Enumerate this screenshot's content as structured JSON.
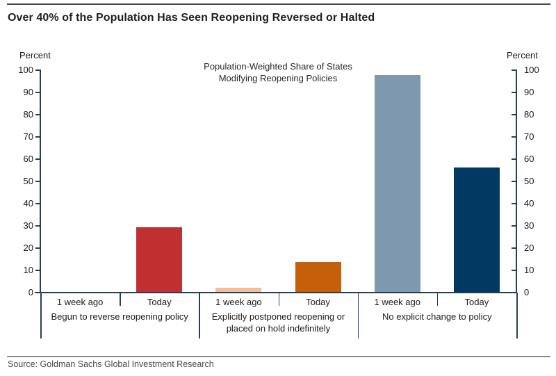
{
  "header": {
    "title": "Over 40% of the Population Has Seen Reopening Reversed or Halted"
  },
  "footer": {
    "source": "Source: Goldman Sachs Global Investment Research"
  },
  "chart_data": {
    "type": "bar",
    "title_lines": [
      "Population-Weighted Share of States",
      "Modifying Reopening Policies"
    ],
    "y_axis_left_label": "Percent",
    "y_axis_right_label": "Percent",
    "y_axis": {
      "min": 0,
      "max": 100,
      "step": 10,
      "tick_labels": [
        0,
        10,
        20,
        30,
        40,
        50,
        60,
        70,
        80,
        90,
        100
      ]
    },
    "ylim": [
      0,
      100
    ],
    "grid": "off",
    "legend": "none",
    "axis_color": "#24415B",
    "groups": [
      {
        "label_lines": [
          "Begun to reverse reopening policy"
        ],
        "bars": [
          {
            "category": "1 week ago",
            "value": 0,
            "color": "#F2BE9B"
          },
          {
            "category": "Today",
            "value": 29,
            "color": "#C03031"
          }
        ]
      },
      {
        "label_lines": [
          "Explicitly postponed reopening or",
          "placed on hold indefinitely"
        ],
        "bars": [
          {
            "category": "1 week ago",
            "value": 2,
            "color": "#F2BE9B"
          },
          {
            "category": "Today",
            "value": 13.5,
            "color": "#C65F0A"
          }
        ]
      },
      {
        "label_lines": [
          "No explicit change to policy"
        ],
        "bars": [
          {
            "category": "1 week ago",
            "value": 97.5,
            "color": "#7E99AF"
          },
          {
            "category": "Today",
            "value": 56,
            "color": "#003A63"
          }
        ]
      }
    ]
  }
}
